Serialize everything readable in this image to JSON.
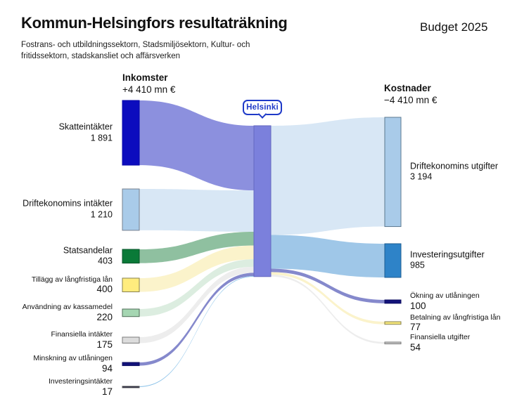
{
  "header": {
    "title": "Kommun-Helsingfors resultaträkning",
    "subtitle_line1": "Fostrans- och utbildningssektorn, Stadsmiljösektorn, Kultur- och",
    "subtitle_line2": "fritidssektorn, stadskansliet och affärsverken",
    "budget_label": "Budget 2025"
  },
  "columns": {
    "income": {
      "label": "Inkomster",
      "total": "+4 410 mn €"
    },
    "cost": {
      "label": "Kostnader",
      "total": "−4 410 mn €"
    }
  },
  "center_badge": {
    "label": "Helsinki",
    "color": "#1f3ac8"
  },
  "chart_data": {
    "type": "sankey",
    "unit": "mn €",
    "total_in": 4410,
    "total_out": 4410,
    "center": {
      "label": "Helsinki",
      "bar_color": "#7b80dc",
      "bar_border": "#6468c0"
    },
    "sources": [
      {
        "label": "Skatteintäkter",
        "value": 1891,
        "display": "1 891",
        "node_color": "#0c0cbe",
        "node_border": "#0a0aa8",
        "flow_color": "#8c90de",
        "label_size": "lg"
      },
      {
        "label": "Driftekonomins intäkter",
        "value": 1210,
        "display": "1 210",
        "node_color": "#a9cbe9",
        "node_border": "#76808f",
        "flow_color": "#d8e7f5",
        "label_size": "lg"
      },
      {
        "label": "Statsandelar",
        "value": 403,
        "display": "403",
        "node_color": "#0a7a38",
        "node_border": "#08542a",
        "flow_color": "#8fc0a0",
        "label_size": "lg"
      },
      {
        "label": "Tillägg av långfristiga lån",
        "value": 400,
        "display": "400",
        "node_color": "#ffec7e",
        "node_border": "#87814f",
        "flow_color": "#fbf3cb",
        "label_size": "sm"
      },
      {
        "label": "Användning av kassamedel",
        "value": 220,
        "display": "220",
        "node_color": "#a5d6b2",
        "node_border": "#4f6d58",
        "flow_color": "#dcede0",
        "label_size": "sm"
      },
      {
        "label": "Finansiella intäkter",
        "value": 175,
        "display": "175",
        "node_color": "#dcdcdc",
        "node_border": "#7d7d7d",
        "flow_color": "#ededed",
        "label_size": "sm"
      },
      {
        "label": "Minskning av utlåningen",
        "value": 94,
        "display": "94",
        "node_color": "#12127a",
        "node_border": "#0e0e60",
        "flow_color": "#8589cc",
        "label_size": "sm"
      },
      {
        "label": "Investeringsintäkter",
        "value": 17,
        "display": "17",
        "node_color": "#1a1a3c",
        "node_border": "#555555",
        "flow_color": "#85bfe8",
        "label_size": "sm"
      }
    ],
    "targets": [
      {
        "label": "Driftekonomins utgifter",
        "value": 3194,
        "display": "3 194",
        "node_color": "#a9cbe9",
        "node_border": "#5c7890",
        "flow_color": "#d8e7f5",
        "label_size": "lg"
      },
      {
        "label": "Investeringsutgifter",
        "value": 985,
        "display": "985",
        "node_color": "#2e83c8",
        "node_border": "#1c5c92",
        "flow_color": "#9fc7e8",
        "label_size": "lg"
      },
      {
        "label": "Ökning av utlåningen",
        "value": 100,
        "display": "100",
        "node_color": "#12127a",
        "node_border": "#0e0e60",
        "flow_color": "#8589cc",
        "label_size": "sm"
      },
      {
        "label": "Betalning av långfristiga lån",
        "value": 77,
        "display": "77",
        "node_color": "#f7e87c",
        "node_border": "#87814f",
        "flow_color": "#fbf3cb",
        "label_size": "sm"
      },
      {
        "label": "Finansiella utgifter",
        "value": 54,
        "display": "54",
        "node_color": "#c8c8c8",
        "node_border": "#7a7a7a",
        "flow_color": "#ededed",
        "label_size": "sm"
      }
    ]
  }
}
